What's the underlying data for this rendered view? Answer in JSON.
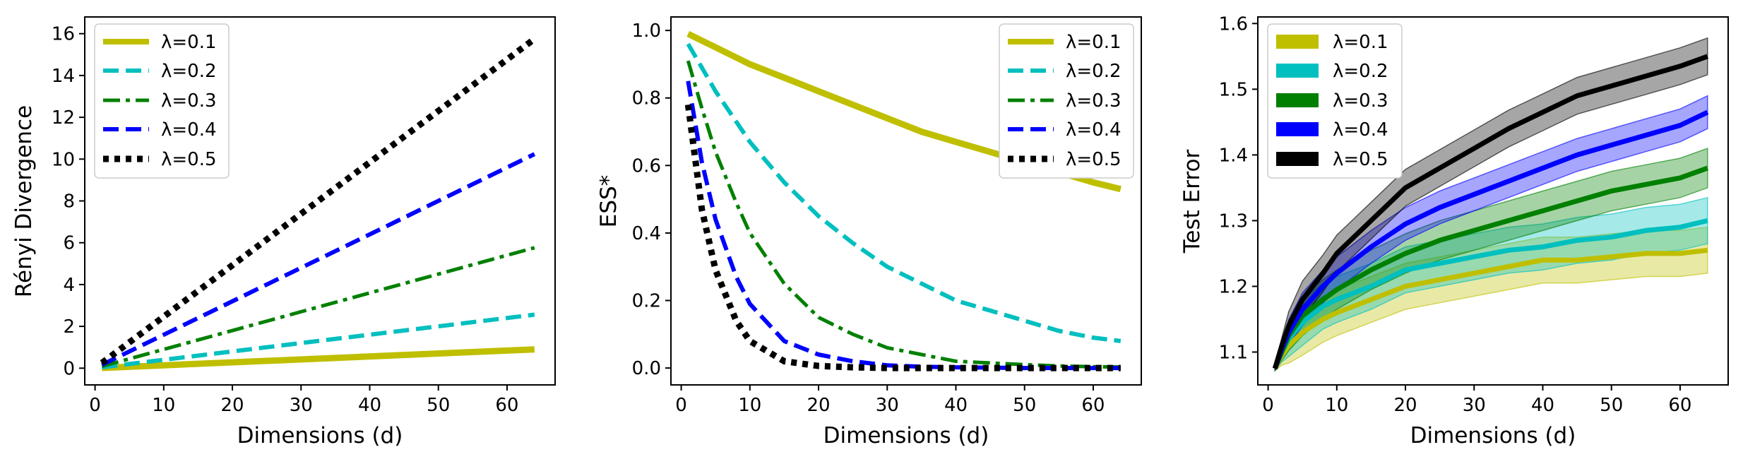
{
  "figure": {
    "colors": {
      "lambda_0_1": "#bfbf00",
      "lambda_0_2": "#00bfbf",
      "lambda_0_3": "#008000",
      "lambda_0_4": "#0000ff",
      "lambda_0_5": "#000000"
    }
  },
  "chart_data": [
    {
      "type": "line",
      "xlabel": "Dimensions (d)",
      "ylabel": "Rényi Divergence",
      "xlim": [
        -1.5,
        67
      ],
      "ylim": [
        -0.8,
        16.8
      ],
      "xticks": [
        "0",
        "10",
        "20",
        "30",
        "40",
        "50",
        "60"
      ],
      "yticks": [
        "0",
        "2",
        "4",
        "6",
        "8",
        "10",
        "12",
        "14",
        "16"
      ],
      "legend_position": "upper left",
      "grid": false,
      "x": [
        1,
        64
      ],
      "series": [
        {
          "name": "λ=0.1",
          "style": "solid",
          "values": [
            0.01,
            0.9
          ]
        },
        {
          "name": "λ=0.2",
          "style": "dashed",
          "values": [
            0.04,
            2.56
          ]
        },
        {
          "name": "λ=0.3",
          "style": "dashdot",
          "values": [
            0.09,
            5.76
          ]
        },
        {
          "name": "λ=0.4",
          "style": "dashed",
          "values": [
            0.16,
            10.24
          ]
        },
        {
          "name": "λ=0.5",
          "style": "dotted",
          "values": [
            0.25,
            15.75
          ]
        }
      ]
    },
    {
      "type": "line",
      "xlabel": "Dimensions (d)",
      "ylabel": "ESS*",
      "xlim": [
        -1.5,
        67
      ],
      "ylim": [
        -0.05,
        1.04
      ],
      "xticks": [
        "0",
        "10",
        "20",
        "30",
        "40",
        "50",
        "60"
      ],
      "yticks": [
        "0.0",
        "0.2",
        "0.4",
        "0.6",
        "0.8",
        "1.0"
      ],
      "legend_position": "upper right",
      "grid": false,
      "x": [
        1,
        3,
        5,
        8,
        10,
        15,
        20,
        25,
        30,
        35,
        40,
        45,
        50,
        55,
        60,
        64
      ],
      "series": [
        {
          "name": "λ=0.1",
          "style": "solid",
          "values": [
            0.99,
            0.97,
            0.95,
            0.92,
            0.9,
            0.86,
            0.82,
            0.78,
            0.74,
            0.7,
            0.67,
            0.64,
            0.61,
            0.58,
            0.55,
            0.53
          ]
        },
        {
          "name": "λ=0.2",
          "style": "dashed",
          "values": [
            0.96,
            0.89,
            0.82,
            0.73,
            0.67,
            0.55,
            0.45,
            0.37,
            0.3,
            0.25,
            0.2,
            0.17,
            0.14,
            0.11,
            0.09,
            0.08
          ]
        },
        {
          "name": "λ=0.3",
          "style": "dashdot",
          "values": [
            0.91,
            0.77,
            0.64,
            0.49,
            0.4,
            0.25,
            0.15,
            0.1,
            0.06,
            0.04,
            0.02,
            0.015,
            0.01,
            0.006,
            0.004,
            0.003
          ]
        },
        {
          "name": "λ=0.4",
          "style": "dashed",
          "values": [
            0.85,
            0.61,
            0.44,
            0.27,
            0.19,
            0.08,
            0.04,
            0.02,
            0.008,
            0.004,
            0.002,
            0.001,
            0.0,
            0.0,
            0.0,
            0.0
          ]
        },
        {
          "name": "λ=0.5",
          "style": "dotted",
          "values": [
            0.78,
            0.47,
            0.29,
            0.14,
            0.08,
            0.02,
            0.006,
            0.002,
            0.0,
            0.0,
            0.0,
            0.0,
            0.0,
            0.0,
            0.0,
            0.0
          ]
        }
      ]
    },
    {
      "type": "line",
      "xlabel": "Dimensions (d)",
      "ylabel": "Test Error",
      "xlim": [
        -1.5,
        67
      ],
      "ylim": [
        1.05,
        1.61
      ],
      "xticks": [
        "0",
        "10",
        "20",
        "30",
        "40",
        "50",
        "60"
      ],
      "yticks": [
        "1.1",
        "1.2",
        "1.3",
        "1.4",
        "1.5",
        "1.6"
      ],
      "legend_position": "upper left",
      "grid": false,
      "x": [
        1,
        2,
        3,
        5,
        8,
        10,
        15,
        20,
        25,
        30,
        35,
        40,
        45,
        50,
        55,
        60,
        64
      ],
      "series": [
        {
          "name": "λ=0.1",
          "values": [
            1.075,
            1.095,
            1.11,
            1.13,
            1.15,
            1.16,
            1.18,
            1.2,
            1.21,
            1.22,
            1.23,
            1.24,
            1.24,
            1.245,
            1.25,
            1.25,
            1.255
          ],
          "band": 0.035
        },
        {
          "name": "λ=0.2",
          "values": [
            1.075,
            1.1,
            1.12,
            1.145,
            1.17,
            1.18,
            1.2,
            1.225,
            1.235,
            1.245,
            1.255,
            1.26,
            1.27,
            1.275,
            1.285,
            1.29,
            1.3
          ],
          "band": 0.035
        },
        {
          "name": "λ=0.3",
          "values": [
            1.075,
            1.1,
            1.125,
            1.155,
            1.18,
            1.195,
            1.225,
            1.25,
            1.27,
            1.285,
            1.3,
            1.315,
            1.33,
            1.345,
            1.355,
            1.365,
            1.38
          ],
          "band": 0.03
        },
        {
          "name": "λ=0.4",
          "values": [
            1.075,
            1.105,
            1.13,
            1.165,
            1.2,
            1.22,
            1.26,
            1.295,
            1.32,
            1.34,
            1.36,
            1.38,
            1.4,
            1.415,
            1.43,
            1.445,
            1.465
          ],
          "band": 0.025
        },
        {
          "name": "λ=0.5",
          "values": [
            1.075,
            1.11,
            1.14,
            1.18,
            1.22,
            1.25,
            1.3,
            1.35,
            1.38,
            1.41,
            1.44,
            1.465,
            1.49,
            1.505,
            1.52,
            1.535,
            1.55
          ],
          "band": 0.028
        }
      ]
    }
  ]
}
